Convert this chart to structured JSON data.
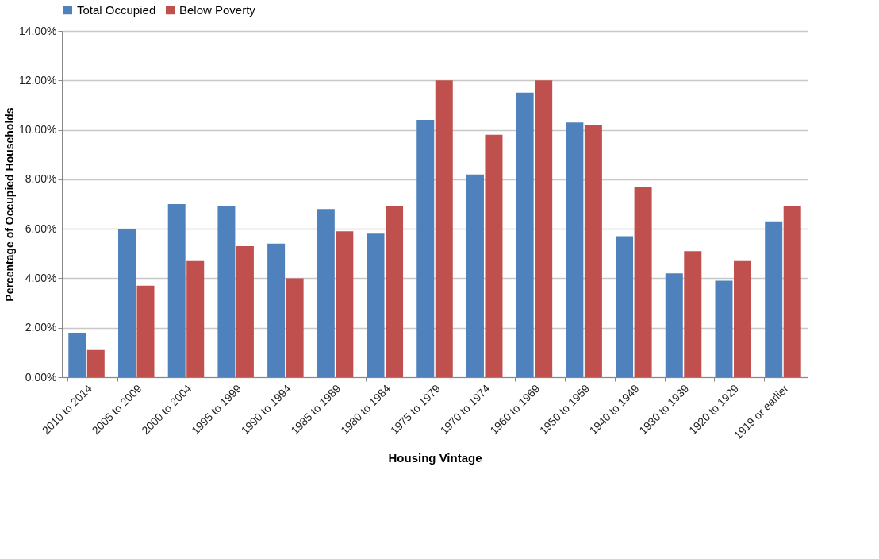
{
  "chart_data": {
    "type": "bar",
    "xlabel": "Housing Vintage",
    "ylabel": "Percentage of Occupied Households",
    "categories": [
      "2010 to 2014",
      "2005 to 2009",
      "2000 to 2004",
      "1995 to 1999",
      "1990 to 1994",
      "1985 to 1989",
      "1980 to 1984",
      "1975 to 1979",
      "1970 to 1974",
      "1960 to 1969",
      "1950 to 1959",
      "1940 to 1949",
      "1930 to 1939",
      "1920 to 1929",
      "1919 or earlier"
    ],
    "series": [
      {
        "name": "Total Occupied",
        "color": "#4f81bd",
        "values": [
          1.8,
          6.0,
          7.0,
          6.9,
          5.4,
          6.8,
          5.8,
          10.4,
          8.2,
          11.5,
          10.3,
          5.7,
          4.2,
          3.9,
          6.3
        ]
      },
      {
        "name": "Below Poverty",
        "color": "#c0504d",
        "values": [
          1.1,
          3.7,
          4.7,
          5.3,
          4.0,
          5.9,
          6.9,
          12.0,
          9.8,
          12.0,
          10.2,
          7.7,
          5.1,
          4.7,
          6.9
        ]
      }
    ],
    "ylim": [
      0,
      14
    ],
    "yticks": [
      {
        "value": 0,
        "label": "0.00%"
      },
      {
        "value": 2,
        "label": "2.00%"
      },
      {
        "value": 4,
        "label": "4.00%"
      },
      {
        "value": 6,
        "label": "6.00%"
      },
      {
        "value": 8,
        "label": "8.00%"
      },
      {
        "value": 10,
        "label": "10.00%"
      },
      {
        "value": 12,
        "label": "12.00%"
      },
      {
        "value": 14,
        "label": "14.00%"
      }
    ],
    "grid": "y",
    "legend": "top"
  }
}
